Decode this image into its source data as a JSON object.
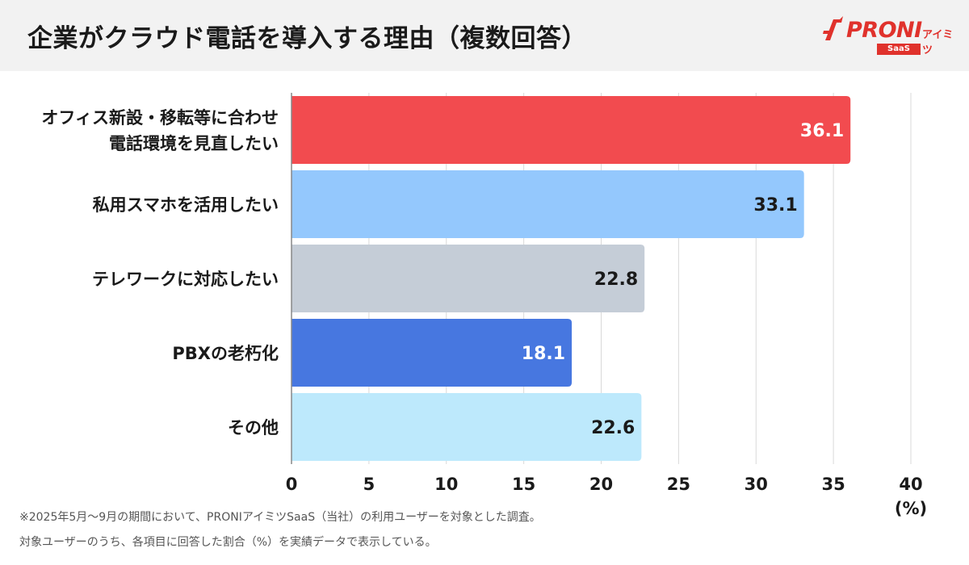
{
  "header": {
    "title": "企業がクラウド電話を導入する理由（複数回答）",
    "logo": {
      "brand": "PRONI",
      "sub": "アイミツ",
      "badge": "SaaS"
    }
  },
  "chart_data": {
    "type": "bar",
    "orientation": "horizontal",
    "categories": [
      [
        "オフィス新設・移転等に合わせ",
        "電話環境を見直したい"
      ],
      [
        "私用スマホを活用したい"
      ],
      [
        "テレワークに対応したい"
      ],
      [
        "PBXの老朽化"
      ],
      [
        "その他"
      ]
    ],
    "values": [
      36.1,
      33.1,
      22.8,
      18.1,
      22.6
    ],
    "value_labels": [
      "36.1",
      "33.1",
      "22.8",
      "18.1",
      "22.6"
    ],
    "bar_colors": [
      "#f24b4f",
      "#94c8fd",
      "#c5cdd7",
      "#4777e0",
      "#bde9fc"
    ],
    "label_colors": [
      "#ffffff",
      "#1a1a1a",
      "#1a1a1a",
      "#ffffff",
      "#1a1a1a"
    ],
    "xlim": [
      0,
      40
    ],
    "xticks": [
      0,
      5,
      10,
      15,
      20,
      25,
      30,
      35,
      40
    ],
    "xunit": "(%)",
    "grid": true
  },
  "footnotes": [
    "※2025年5月〜9月の期間において、PRONIアイミツSaaS（当社）の利用ユーザーを対象とした調査。",
    "対象ユーザーのうち、各項目に回答した割合（%）を実績データで表示している。"
  ]
}
